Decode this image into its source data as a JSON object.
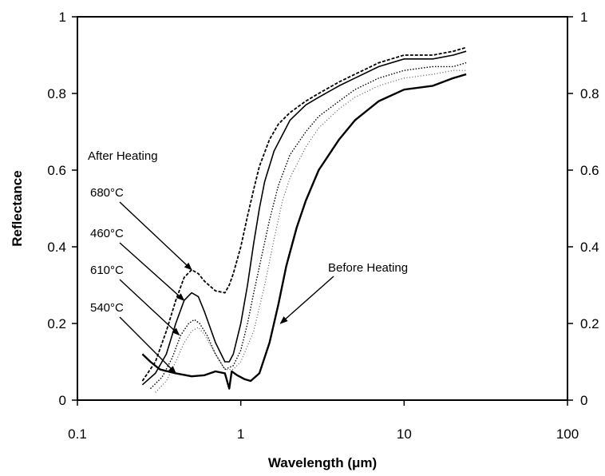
{
  "chart_data": {
    "type": "line",
    "xlabel": "Wavelength (μm)",
    "ylabel": "Reflectance",
    "x_scale": "log",
    "xlim": [
      0.1,
      100
    ],
    "ylim": [
      0,
      1
    ],
    "xticks": [
      "0.1",
      "1",
      "10",
      "100"
    ],
    "yticks_left": [
      "0",
      "0.2",
      "0.4",
      "0.6",
      "0.8",
      "1"
    ],
    "yticks_right": [
      "0",
      "0.2",
      "0.4",
      "0.6",
      "0.8",
      "1"
    ],
    "grid": false,
    "colors": {
      "ink": "#000000",
      "light": "#555555"
    },
    "series": [
      {
        "name": "680°C",
        "style": "dashed",
        "points": [
          [
            0.25,
            0.05
          ],
          [
            0.3,
            0.1
          ],
          [
            0.35,
            0.18
          ],
          [
            0.4,
            0.26
          ],
          [
            0.45,
            0.32
          ],
          [
            0.5,
            0.34
          ],
          [
            0.55,
            0.33
          ],
          [
            0.6,
            0.31
          ],
          [
            0.7,
            0.285
          ],
          [
            0.8,
            0.28
          ],
          [
            0.85,
            0.3
          ],
          [
            0.9,
            0.33
          ],
          [
            1.0,
            0.4
          ],
          [
            1.1,
            0.48
          ],
          [
            1.2,
            0.55
          ],
          [
            1.3,
            0.61
          ],
          [
            1.5,
            0.68
          ],
          [
            1.7,
            0.72
          ],
          [
            2.0,
            0.75
          ],
          [
            2.5,
            0.78
          ],
          [
            3,
            0.8
          ],
          [
            4,
            0.83
          ],
          [
            5,
            0.85
          ],
          [
            7,
            0.88
          ],
          [
            10,
            0.9
          ],
          [
            15,
            0.9
          ],
          [
            20,
            0.91
          ],
          [
            24,
            0.92
          ]
        ]
      },
      {
        "name": "460°C",
        "style": "solid",
        "points": [
          [
            0.25,
            0.04
          ],
          [
            0.3,
            0.07
          ],
          [
            0.35,
            0.12
          ],
          [
            0.4,
            0.2
          ],
          [
            0.45,
            0.26
          ],
          [
            0.5,
            0.28
          ],
          [
            0.55,
            0.27
          ],
          [
            0.6,
            0.23
          ],
          [
            0.7,
            0.15
          ],
          [
            0.8,
            0.1
          ],
          [
            0.85,
            0.1
          ],
          [
            0.9,
            0.12
          ],
          [
            1.0,
            0.2
          ],
          [
            1.1,
            0.3
          ],
          [
            1.2,
            0.41
          ],
          [
            1.3,
            0.5
          ],
          [
            1.4,
            0.57
          ],
          [
            1.6,
            0.65
          ],
          [
            2.0,
            0.73
          ],
          [
            2.5,
            0.77
          ],
          [
            3,
            0.79
          ],
          [
            4,
            0.82
          ],
          [
            5,
            0.84
          ],
          [
            7,
            0.87
          ],
          [
            10,
            0.89
          ],
          [
            15,
            0.89
          ],
          [
            20,
            0.9
          ],
          [
            24,
            0.91
          ]
        ]
      },
      {
        "name": "610°C",
        "style": "dotted",
        "points": [
          [
            0.28,
            0.03
          ],
          [
            0.33,
            0.06
          ],
          [
            0.38,
            0.11
          ],
          [
            0.43,
            0.17
          ],
          [
            0.48,
            0.2
          ],
          [
            0.52,
            0.21
          ],
          [
            0.56,
            0.2
          ],
          [
            0.62,
            0.17
          ],
          [
            0.7,
            0.12
          ],
          [
            0.8,
            0.08
          ],
          [
            0.9,
            0.09
          ],
          [
            1.0,
            0.13
          ],
          [
            1.1,
            0.2
          ],
          [
            1.2,
            0.28
          ],
          [
            1.35,
            0.38
          ],
          [
            1.5,
            0.47
          ],
          [
            1.7,
            0.56
          ],
          [
            2.0,
            0.64
          ],
          [
            2.5,
            0.7
          ],
          [
            3,
            0.74
          ],
          [
            4,
            0.78
          ],
          [
            5,
            0.81
          ],
          [
            7,
            0.84
          ],
          [
            10,
            0.86
          ],
          [
            15,
            0.87
          ],
          [
            20,
            0.87
          ],
          [
            24,
            0.88
          ]
        ]
      },
      {
        "name": "540°C",
        "style": "dotted-light",
        "points": [
          [
            0.3,
            0.02
          ],
          [
            0.35,
            0.05
          ],
          [
            0.4,
            0.1
          ],
          [
            0.45,
            0.15
          ],
          [
            0.5,
            0.18
          ],
          [
            0.55,
            0.19
          ],
          [
            0.6,
            0.17
          ],
          [
            0.7,
            0.12
          ],
          [
            0.8,
            0.08
          ],
          [
            0.9,
            0.08
          ],
          [
            1.0,
            0.1
          ],
          [
            1.2,
            0.18
          ],
          [
            1.4,
            0.3
          ],
          [
            1.6,
            0.42
          ],
          [
            1.8,
            0.52
          ],
          [
            2.0,
            0.58
          ],
          [
            2.5,
            0.66
          ],
          [
            3,
            0.71
          ],
          [
            4,
            0.76
          ],
          [
            5,
            0.79
          ],
          [
            7,
            0.82
          ],
          [
            10,
            0.84
          ],
          [
            15,
            0.85
          ],
          [
            20,
            0.86
          ],
          [
            24,
            0.86
          ]
        ]
      },
      {
        "name": "Before Heating",
        "style": "solid-bold",
        "points": [
          [
            0.25,
            0.12
          ],
          [
            0.28,
            0.1
          ],
          [
            0.32,
            0.08
          ],
          [
            0.4,
            0.07
          ],
          [
            0.5,
            0.062
          ],
          [
            0.6,
            0.065
          ],
          [
            0.7,
            0.075
          ],
          [
            0.8,
            0.07
          ],
          [
            0.85,
            0.03
          ],
          [
            0.88,
            0.075
          ],
          [
            0.95,
            0.065
          ],
          [
            1.05,
            0.055
          ],
          [
            1.15,
            0.05
          ],
          [
            1.3,
            0.07
          ],
          [
            1.5,
            0.15
          ],
          [
            1.7,
            0.25
          ],
          [
            1.9,
            0.35
          ],
          [
            2.2,
            0.45
          ],
          [
            2.5,
            0.52
          ],
          [
            3,
            0.6
          ],
          [
            4,
            0.68
          ],
          [
            5,
            0.73
          ],
          [
            7,
            0.78
          ],
          [
            10,
            0.81
          ],
          [
            15,
            0.82
          ],
          [
            20,
            0.84
          ],
          [
            24,
            0.85
          ]
        ]
      }
    ],
    "annotations": {
      "group_label": "After Heating",
      "labels": [
        {
          "text": "680°C",
          "target": [
            0.5,
            0.34
          ]
        },
        {
          "text": "460°C",
          "target": [
            0.45,
            0.26
          ]
        },
        {
          "text": "610°C",
          "target": [
            0.42,
            0.17
          ]
        },
        {
          "text": "540°C",
          "target": [
            0.4,
            0.07
          ]
        },
        {
          "text": "Before Heating",
          "target": [
            1.75,
            0.2
          ]
        }
      ]
    }
  }
}
